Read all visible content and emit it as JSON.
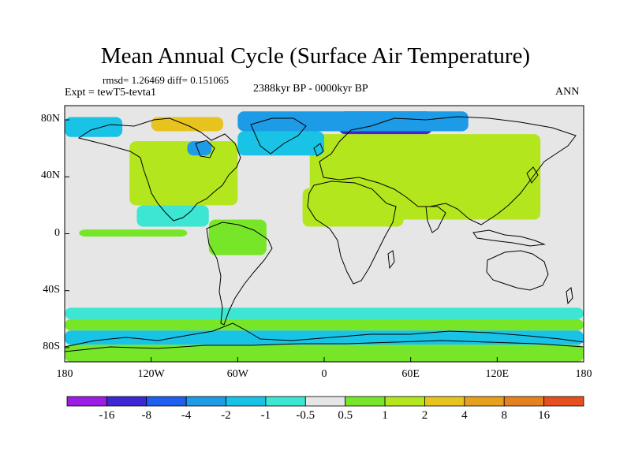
{
  "title": "Mean Annual Cycle (Surface Air Temperature)",
  "stats_text": "rmsd= 1.26469 diff= 0.151065",
  "experiment_text": "Expt = tewT5-tevta1",
  "period_text": "2388kyr BP - 0000kyr BP",
  "season_text": "ANN",
  "axes": {
    "lon_range": [
      -180,
      180
    ],
    "lat_range": [
      -90,
      90
    ],
    "x_ticks": [
      {
        "value": -180,
        "label": "180"
      },
      {
        "value": -120,
        "label": "120W"
      },
      {
        "value": -60,
        "label": "60W"
      },
      {
        "value": 0,
        "label": "0"
      },
      {
        "value": 60,
        "label": "60E"
      },
      {
        "value": 120,
        "label": "120E"
      },
      {
        "value": 180,
        "label": "180"
      }
    ],
    "y_ticks": [
      {
        "value": 80,
        "label": "80N"
      },
      {
        "value": 40,
        "label": "40N"
      },
      {
        "value": 0,
        "label": "0"
      },
      {
        "value": -40,
        "label": "40S"
      },
      {
        "value": -80,
        "label": "80S"
      }
    ]
  },
  "colorbar": {
    "colors": [
      "#9b1de6",
      "#3c28d2",
      "#1e5ff0",
      "#1e9be6",
      "#19c3e6",
      "#3ce6d2",
      "#e6e6e6",
      "#78e628",
      "#b4e61e",
      "#e6c31e",
      "#e6a01e",
      "#e6821e",
      "#e6501e"
    ],
    "labels": [
      "-16",
      "-8",
      "-4",
      "-2",
      "-1",
      "-0.5",
      "0.5",
      "1",
      "2",
      "4",
      "8",
      "16"
    ]
  },
  "chart_data": {
    "type": "heatmap",
    "title": "Mean Annual Cycle (Surface Air Temperature)",
    "variable": "Surface Air Temperature difference",
    "experiment": "tewT5-tevta1",
    "period": "2388kyr BP - 0000kyr BP",
    "season": "ANN",
    "rmsd": 1.26469,
    "diff": 0.151065,
    "levels": [
      -16,
      -8,
      -4,
      -2,
      -1,
      -0.5,
      0.5,
      1,
      2,
      4,
      8,
      16
    ],
    "regions": [
      {
        "name": "north-america-interior",
        "lon": [
          -130,
          -70
        ],
        "lat": [
          25,
          55
        ],
        "value": 3
      },
      {
        "name": "north-america-surround",
        "lon": [
          -135,
          -60
        ],
        "lat": [
          20,
          65
        ],
        "value": 1.5
      },
      {
        "name": "siberia-central-asia",
        "lon": [
          40,
          130
        ],
        "lat": [
          35,
          65
        ],
        "value": 3
      },
      {
        "name": "eurasia-surround",
        "lon": [
          -10,
          150
        ],
        "lat": [
          10,
          70
        ],
        "value": 1.5
      },
      {
        "name": "sahara-arabia",
        "lon": [
          -15,
          55
        ],
        "lat": [
          5,
          32
        ],
        "value": 1.5
      },
      {
        "name": "barents-kara-sea",
        "lon": [
          10,
          75
        ],
        "lat": [
          70,
          86
        ],
        "value": -8
      },
      {
        "name": "arctic-basin",
        "lon": [
          -60,
          100
        ],
        "lat": [
          72,
          86
        ],
        "value": -3
      },
      {
        "name": "pacific-arctic",
        "lon": [
          -180,
          -140
        ],
        "lat": [
          68,
          82
        ],
        "value": -1.5
      },
      {
        "name": "north-atlantic",
        "lon": [
          -60,
          0
        ],
        "lat": [
          55,
          72
        ],
        "value": -1.5
      },
      {
        "name": "canadian-archipelago",
        "lon": [
          -120,
          -70
        ],
        "lat": [
          72,
          82
        ],
        "value": 3
      },
      {
        "name": "hudson-bay",
        "lon": [
          -95,
          -78
        ],
        "lat": [
          55,
          65
        ],
        "value": -2
      },
      {
        "name": "southern-ocean-upper",
        "lon": [
          -180,
          180
        ],
        "lat": [
          -60,
          -52
        ],
        "value": -0.7
      },
      {
        "name": "southern-ocean-lower",
        "lon": [
          -180,
          180
        ],
        "lat": [
          -68,
          -60
        ],
        "value": 0.8
      },
      {
        "name": "antarctic-coast",
        "lon": [
          -180,
          180
        ],
        "lat": [
          -78,
          -68
        ],
        "value": -1.5
      },
      {
        "name": "antarctica-interior",
        "lon": [
          -180,
          180
        ],
        "lat": [
          -90,
          -78
        ],
        "value": 0.8
      },
      {
        "name": "tropical-pacific-band",
        "lon": [
          -170,
          -95
        ],
        "lat": [
          -2,
          3
        ],
        "value": 0.8
      },
      {
        "name": "south-america-north",
        "lon": [
          -80,
          -40
        ],
        "lat": [
          -15,
          10
        ],
        "value": 0.8
      },
      {
        "name": "east-pacific",
        "lon": [
          -130,
          -80
        ],
        "lat": [
          5,
          20
        ],
        "value": -0.7
      }
    ]
  }
}
